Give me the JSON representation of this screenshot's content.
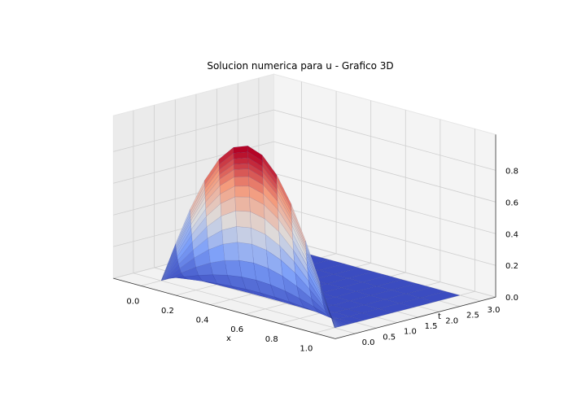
{
  "chart_data": {
    "type": "surface3d",
    "title": "Solucion numerica para u - Grafico 3D",
    "xlabel": "x",
    "ylabel": "t",
    "zlabel": "",
    "xlim": [
      0,
      1
    ],
    "ylim": [
      0,
      3
    ],
    "zlim": [
      0,
      0.95
    ],
    "x_ticks": [
      "0.0",
      "0.2",
      "0.4",
      "0.6",
      "0.8",
      "1.0"
    ],
    "t_ticks": [
      "0.0",
      "0.5",
      "1.0",
      "1.5",
      "2.0",
      "2.5",
      "3.0"
    ],
    "z_ticks": [
      "0.0",
      "0.2",
      "0.4",
      "0.6",
      "0.8"
    ],
    "function": "u(x,t) = sin(pi x) exp(-pi^2 t)",
    "colormap": "coolwarm",
    "grid": true
  }
}
